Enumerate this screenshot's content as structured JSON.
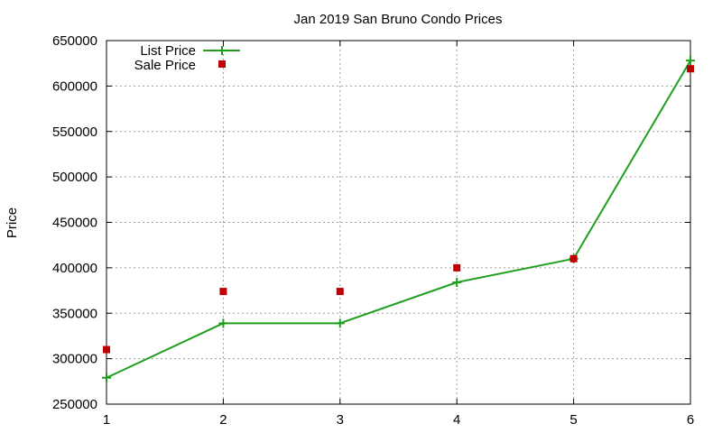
{
  "chart_data": {
    "type": "line",
    "title": "Jan 2019 San Bruno Condo Prices",
    "xlabel": "",
    "ylabel": "Price",
    "xlim": [
      1,
      6
    ],
    "ylim": [
      250000,
      650000
    ],
    "x_ticks": [
      1,
      2,
      3,
      4,
      5,
      6
    ],
    "y_ticks": [
      250000,
      300000,
      350000,
      400000,
      450000,
      500000,
      550000,
      600000,
      650000
    ],
    "grid": true,
    "legend_position": "top-left",
    "series": [
      {
        "name": "List Price",
        "style": "line-plus",
        "color": "#1f9f1f",
        "x": [
          1,
          2,
          3,
          4,
          5,
          6
        ],
        "values": [
          279000,
          339000,
          339000,
          384000,
          410000,
          628000
        ]
      },
      {
        "name": "Sale Price",
        "style": "square-points",
        "color": "#c00000",
        "x": [
          1,
          2,
          3,
          4,
          5,
          6
        ],
        "values": [
          310000,
          374000,
          374000,
          400000,
          410000,
          619000
        ]
      }
    ]
  }
}
